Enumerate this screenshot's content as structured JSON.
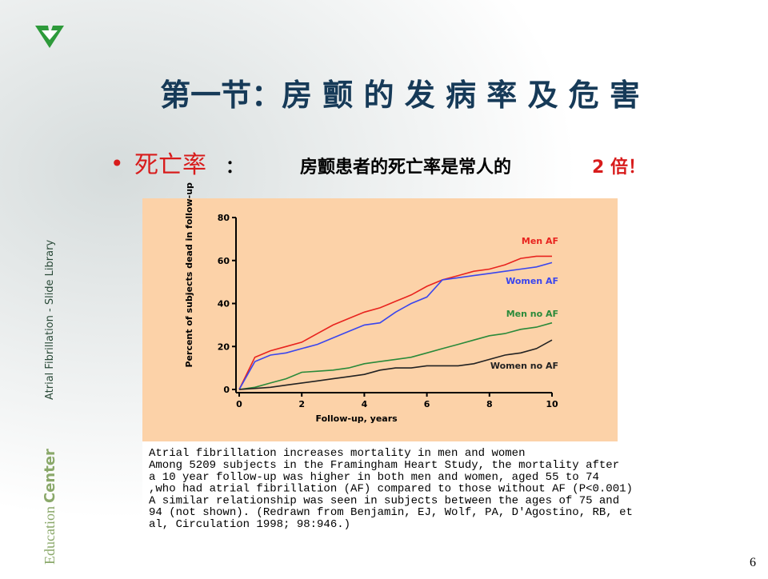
{
  "slide": {
    "title": "第一节：房 颤 的 发 病 率 及 危 害",
    "bullet": {
      "term": "死亡率",
      "colon": "：",
      "text": "房颤患者的死亡率是常人的",
      "emphasis": "2 倍！"
    },
    "side_label": "Atrial Fibrillation - Slide Library",
    "brand": {
      "first": "Education",
      "second": "Center"
    },
    "page_number": "6",
    "caption": {
      "title": "Atrial fibrillation increases mortality in men and women",
      "lines": [
        "Among 5209 subjects in the Framingham Heart Study, the mortality after",
        "a 10 year follow-up was higher in both men and women, aged 55 to 74",
        ",who had atrial fibrillation (AF) compared to those without AF (P<0.001)",
        "A similar relationship was seen in subjects between the ages of 75 and",
        "94 (not shown). (Redrawn from Benjamin, EJ, Wolf, PA, D'Agostino, RB, et",
        "al, Circulation 1998; 98:946.)"
      ]
    }
  },
  "chart_data": {
    "type": "line",
    "x_label": "Follow-up, years",
    "y_label": "Percent of subjects dead in follow-up",
    "x": [
      0,
      0.5,
      1,
      1.5,
      2,
      2.5,
      3,
      3.5,
      4,
      4.5,
      5,
      5.5,
      6,
      6.5,
      7,
      7.5,
      8,
      8.5,
      9,
      9.5,
      10
    ],
    "series": [
      {
        "name": "Men AF",
        "color": "#e8231e",
        "values": [
          0,
          15,
          18,
          20,
          22,
          26,
          30,
          33,
          36,
          38,
          41,
          44,
          48,
          51,
          53,
          55,
          56,
          58,
          61,
          62,
          62
        ]
      },
      {
        "name": "Women AF",
        "color": "#3a46ee",
        "values": [
          0,
          13,
          16,
          17,
          19,
          21,
          24,
          27,
          30,
          31,
          36,
          40,
          43,
          51,
          52,
          53,
          54,
          55,
          56,
          57,
          59
        ]
      },
      {
        "name": "Men no AF",
        "color": "#2a8a3a",
        "values": [
          0,
          1,
          3,
          5,
          8,
          8.5,
          9,
          10,
          12,
          13,
          14,
          15,
          17,
          19,
          21,
          23,
          25,
          26,
          28,
          29,
          31
        ]
      },
      {
        "name": "Women no AF",
        "color": "#222222",
        "values": [
          0,
          0.5,
          1,
          2,
          3,
          4,
          5,
          6,
          7,
          9,
          10,
          10,
          11,
          11,
          11,
          12,
          14,
          16,
          17,
          19,
          23
        ]
      }
    ],
    "xlim": [
      0,
      10
    ],
    "ylim": [
      0,
      80
    ],
    "xticks": [
      0,
      2,
      4,
      6,
      8,
      10
    ],
    "yticks": [
      0,
      20,
      40,
      60,
      80
    ]
  }
}
